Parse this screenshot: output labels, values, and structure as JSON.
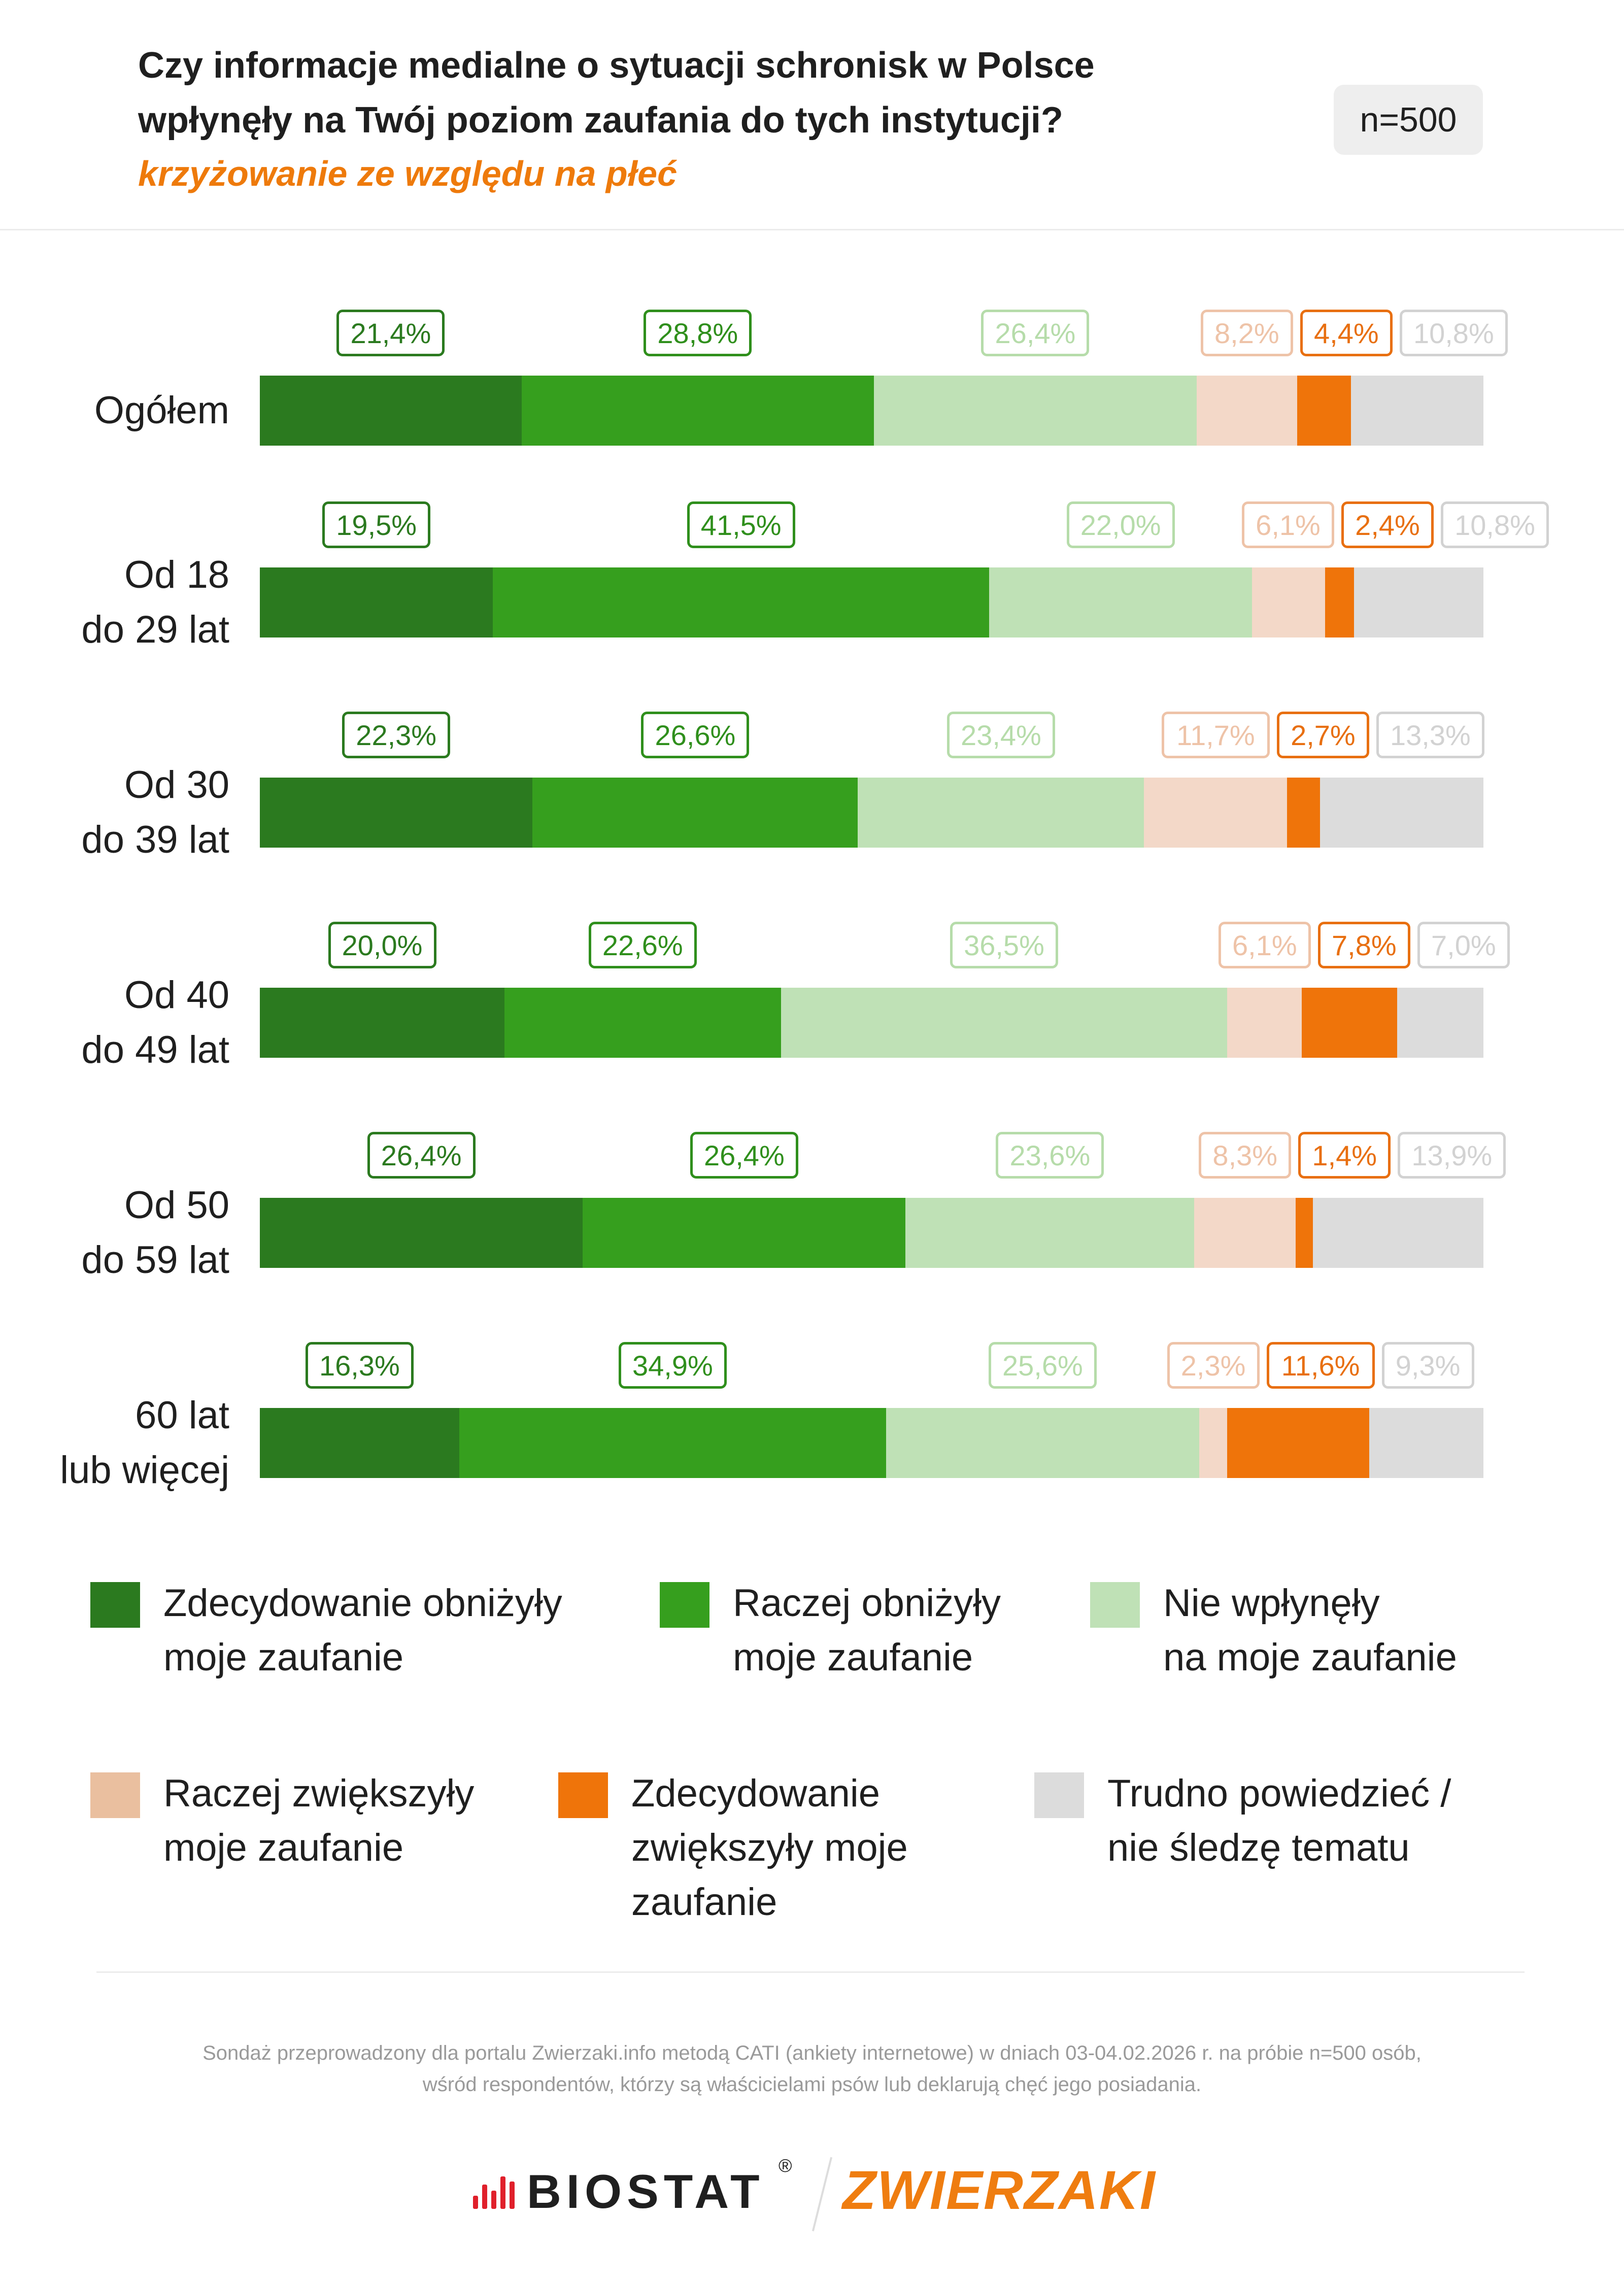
{
  "header": {
    "title_line1": "Czy informacje medialne o sytuacji schronisk w Polsce",
    "title_line2": "wpłynęły na Twój poziom zaufania do tych instytucji?",
    "subtitle": "krzyżowanie ze względu na płeć",
    "sample": "n=500"
  },
  "chart_data": {
    "type": "bar",
    "orientation": "horizontal",
    "stacked": true,
    "normalized": true,
    "title": "Czy informacje medialne o sytuacji schronisk w Polsce wpłynęły na Twój poziom zaufania do tych instytucji?",
    "subtitle": "krzyżowanie ze względu na płeć",
    "unit": "%",
    "categories": [
      [
        "Ogółem"
      ],
      [
        "Od 18",
        "do 29 lat"
      ],
      [
        "Od 30",
        "do 39 lat"
      ],
      [
        "Od 40",
        "do 49 lat"
      ],
      [
        "Od 50",
        "do 59 lat"
      ],
      [
        "60 lat",
        "lub więcej"
      ]
    ],
    "series": [
      {
        "name": "Zdecydowanie obniżyły moje zaufanie",
        "color": "#2b7a1f",
        "label_color": "#2b7a1f",
        "values": [
          21.4,
          19.5,
          22.3,
          20.0,
          26.4,
          16.3
        ],
        "labels": [
          "21,4%",
          "19,5%",
          "22,3%",
          "20,0%",
          "26,4%",
          "16,3%"
        ]
      },
      {
        "name": "Raczej obniżyły moje zaufanie",
        "color": "#369f1e",
        "label_color": "#2f8f1c",
        "values": [
          28.8,
          41.5,
          26.6,
          22.6,
          26.4,
          34.9
        ],
        "labels": [
          "28,8%",
          "41,5%",
          "26,6%",
          "22,6%",
          "26,4%",
          "34,9%"
        ]
      },
      {
        "name": "Nie wpłynęły na moje zaufanie",
        "color": "#bfe1b6",
        "label_color": "#b6dcaa",
        "values": [
          26.4,
          22.0,
          23.4,
          36.5,
          23.6,
          25.6
        ],
        "labels": [
          "26,4%",
          "22,0%",
          "23,4%",
          "36,5%",
          "23,6%",
          "25,6%"
        ]
      },
      {
        "name": "Raczej zwiększyły moje zaufanie",
        "color": "#f3d8c8",
        "label_color": "#eec3a8",
        "values": [
          8.2,
          6.1,
          11.7,
          6.1,
          8.3,
          2.3
        ],
        "labels": [
          "8,2%",
          "6,1%",
          "11,7%",
          "6,1%",
          "8,3%",
          "2,3%"
        ]
      },
      {
        "name": "Zdecydowanie zwiększyły moje zaufanie",
        "color": "#ef740a",
        "label_color": "#e86f10",
        "values": [
          4.4,
          2.4,
          2.7,
          7.8,
          1.4,
          11.6
        ],
        "labels": [
          "4,4%",
          "2,4%",
          "2,7%",
          "7,8%",
          "1,4%",
          "11,6%"
        ]
      },
      {
        "name": "Trudno powiedzieć / nie śledzę tematu",
        "color": "#dcdcdc",
        "label_color": "#d2d2d2",
        "values": [
          10.8,
          10.8,
          13.3,
          7.0,
          13.9,
          9.3
        ],
        "labels": [
          "10,8%",
          "10,8%",
          "13,3%",
          "7,0%",
          "13,9%",
          "9,3%"
        ]
      }
    ],
    "xlim": [
      0,
      100
    ],
    "legend": "bottom"
  },
  "legend": [
    {
      "lines": [
        "Zdecydowanie obniżyły",
        "moje zaufanie"
      ],
      "color": "#2b7a1f"
    },
    {
      "lines": [
        "Raczej obniżyły",
        "moje zaufanie"
      ],
      "color": "#369f1e"
    },
    {
      "lines": [
        "Nie wpłynęły",
        "na moje zaufanie"
      ],
      "color": "#bfe1b6"
    },
    {
      "lines": [
        "Raczej zwiększyły",
        "moje zaufanie"
      ],
      "color": "#eabf9f"
    },
    {
      "lines": [
        "Zdecydowanie",
        "zwiększyły moje",
        "zaufanie"
      ],
      "color": "#ef740a"
    },
    {
      "lines": [
        "Trudno powiedzieć /",
        "nie śledzę tematu"
      ],
      "color": "#dcdcdc"
    }
  ],
  "footer": {
    "note_line1": "Sondaż przeprowadzony dla portalu Zwierzaki.info metodą CATI (ankiety internetowe) w dniach 03-04.02.2026 r. na próbie n=500 osób,",
    "note_line2": "wśród respondentów, którzy są właścicielami psów lub deklarują chęć jego posiadania.",
    "logo_biostat": "BIOSTAT",
    "logo_biostat_reg": "®",
    "logo_zwierzaki": "ZWIERZAKI"
  }
}
